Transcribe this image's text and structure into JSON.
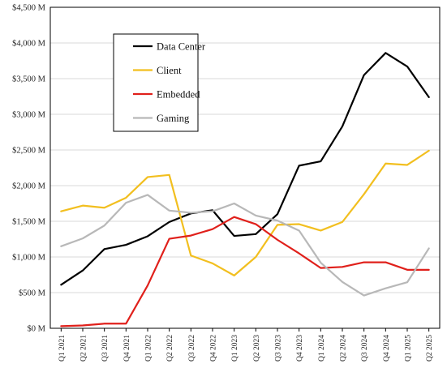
{
  "chart_data": {
    "type": "line",
    "title": "",
    "xlabel": "",
    "ylabel": "",
    "ylim": [
      0,
      4500
    ],
    "y_ticks": [
      0,
      500,
      1000,
      1500,
      2000,
      2500,
      3000,
      3500,
      4000,
      4500
    ],
    "y_tick_labels": [
      "$0 M",
      "$500 M",
      "$1,000 M",
      "$1,500 M",
      "$2,000 M",
      "$2,500 M",
      "$3,000 M",
      "$3,500 M",
      "$4,000 M",
      "$4,500 M"
    ],
    "grid": "horizontal",
    "legend_position": "top-left",
    "categories": [
      "Q1 2021",
      "Q2 2021",
      "Q3 2021",
      "Q4 2021",
      "Q1 2022",
      "Q2 2022",
      "Q3 2022",
      "Q4 2022",
      "Q1 2023",
      "Q2 2023",
      "Q3 2023",
      "Q4 2023",
      "Q1 2024",
      "Q2 2024",
      "Q3 2024",
      "Q4 2024",
      "Q1 2025",
      "Q2 2025"
    ],
    "series": [
      {
        "name": "Data Center",
        "color": "#000000",
        "values": [
          610,
          810,
          1110,
          1170,
          1290,
          1490,
          1610,
          1655,
          1295,
          1320,
          1600,
          2280,
          2340,
          2830,
          3550,
          3860,
          3670,
          3240
        ]
      },
      {
        "name": "Client",
        "color": "#f2bf1f",
        "values": [
          1640,
          1720,
          1690,
          1830,
          2120,
          2150,
          1020,
          910,
          740,
          1000,
          1450,
          1460,
          1370,
          1490,
          1880,
          2310,
          2290,
          2490
        ]
      },
      {
        "name": "Embedded",
        "color": "#e0201b",
        "values": [
          30,
          40,
          65,
          65,
          600,
          1255,
          1300,
          1390,
          1560,
          1460,
          1240,
          1050,
          845,
          860,
          925,
          925,
          820,
          820
        ]
      },
      {
        "name": "Gaming",
        "color": "#b8b8b8",
        "values": [
          1150,
          1260,
          1440,
          1760,
          1870,
          1650,
          1620,
          1640,
          1750,
          1580,
          1510,
          1370,
          920,
          650,
          460,
          560,
          645,
          1120
        ]
      }
    ]
  }
}
